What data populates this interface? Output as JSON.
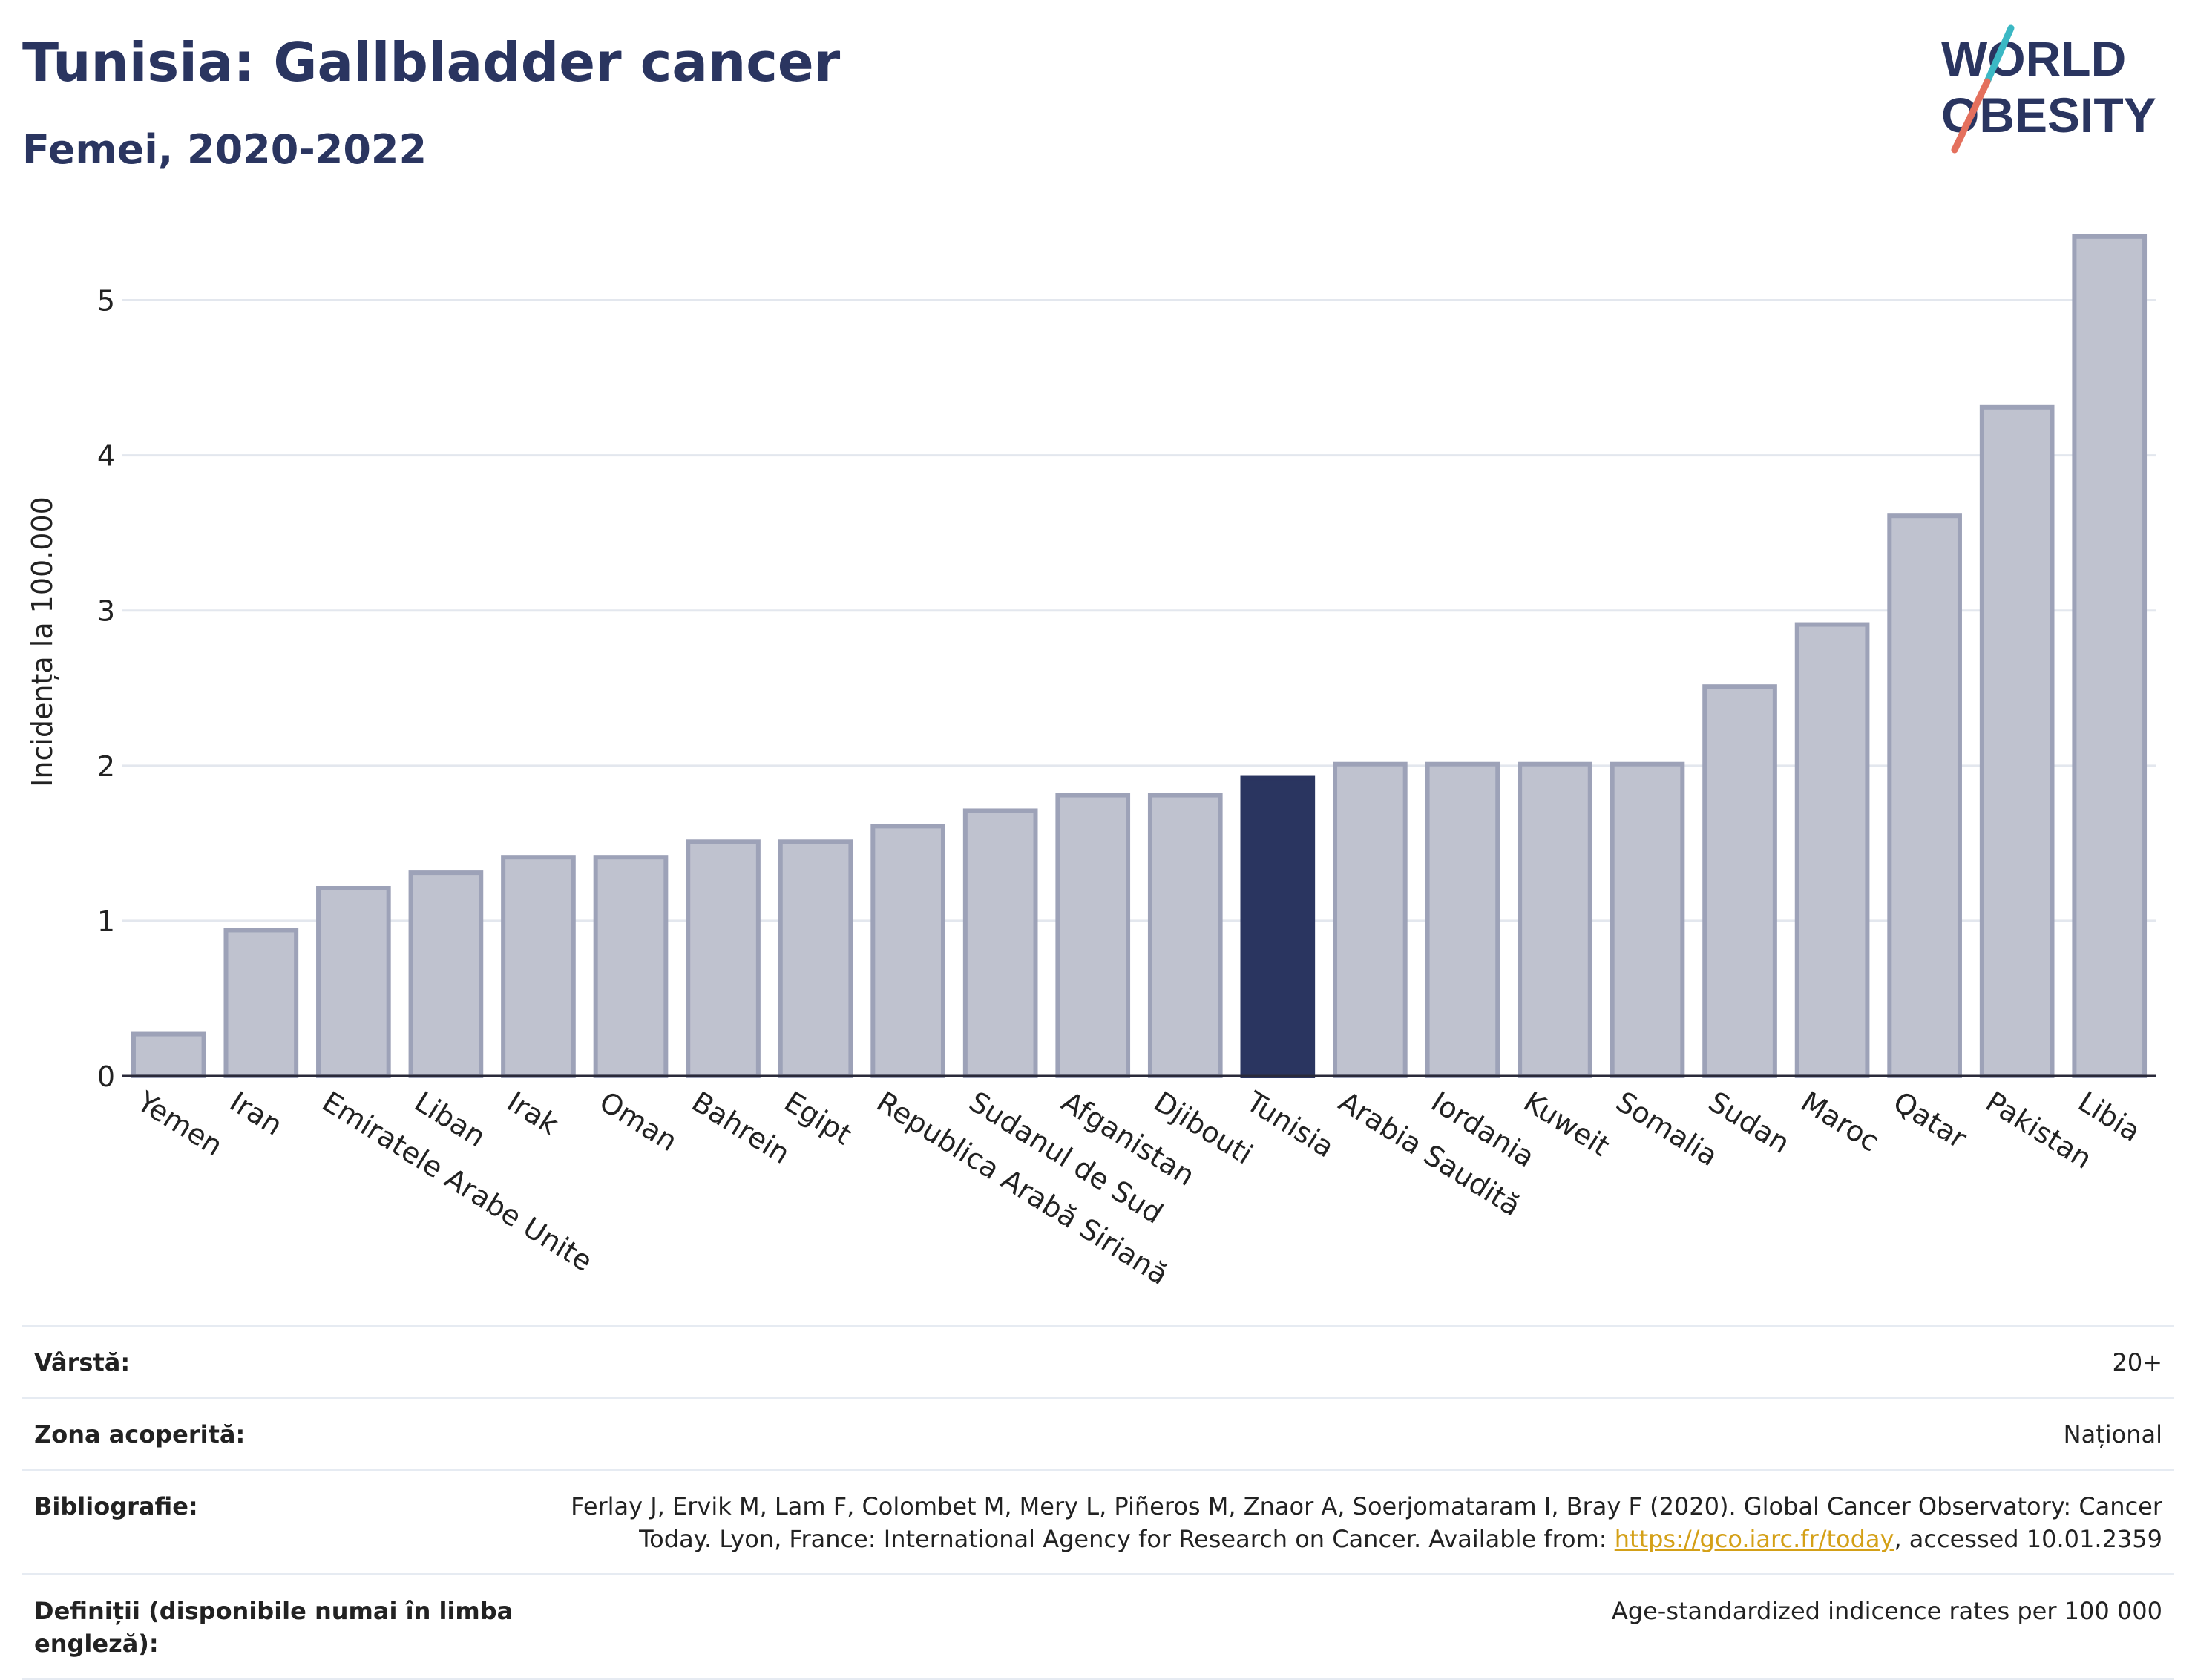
{
  "header": {
    "title": "Tunisia: Gallbladder cancer",
    "subtitle": "Femei, 2020-2022"
  },
  "logo": {
    "line1": "WORLD",
    "line2": "OBESITY",
    "colors": {
      "text": "#2a3560",
      "slash_top": "#3bb8c4",
      "slash_bottom": "#e4705d"
    }
  },
  "chart_data": {
    "type": "bar",
    "ylabel": "Incidența la 100.000",
    "ylim": [
      0,
      5.5
    ],
    "yticks": [
      0,
      1,
      2,
      3,
      4,
      5
    ],
    "grid": true,
    "categories": [
      "Yemen",
      "Iran",
      "Emiratele Arabe Unite",
      "Liban",
      "Irak",
      "Oman",
      "Bahrein",
      "Egipt",
      "Republica Arabă Siriană",
      "Sudanul de Sud",
      "Afganistan",
      "Djibouti",
      "Tunisia",
      "Arabia Saudită",
      "Iordania",
      "Kuweit",
      "Somalia",
      "Sudan",
      "Maroc",
      "Qatar",
      "Pakistan",
      "Libia"
    ],
    "values": [
      0.27,
      0.94,
      1.21,
      1.31,
      1.41,
      1.41,
      1.51,
      1.51,
      1.61,
      1.71,
      1.81,
      1.81,
      1.92,
      2.01,
      2.01,
      2.01,
      2.01,
      2.51,
      2.91,
      3.61,
      4.31,
      5.41
    ],
    "highlight": "Tunisia",
    "colors": {
      "bar": "#bfc2cf",
      "bar_border": "#9da2b8",
      "highlight": "#2a3560",
      "grid": "#e3e7ee",
      "axis": "#2a2a3a"
    }
  },
  "meta": [
    {
      "label": "Vârstă:",
      "value": "20+"
    },
    {
      "label": "Zona acoperită:",
      "value": "Național"
    },
    {
      "label": "Bibliografie:",
      "value_before": "Ferlay J, Ervik M, Lam F, Colombet M, Mery L, Piñeros M, Znaor A, Soerjomataram I, Bray F (2020). Global Cancer Observatory: Cancer Today. Lyon, France: International Agency for Research on Cancer. Available from: ",
      "link": "https://gco.iarc.fr/today",
      "value_after": ", accessed 10.01.2359"
    },
    {
      "label": "Definiții (disponibile numai în limba engleză):",
      "value": "Age-standardized indicence rates per 100 000"
    }
  ]
}
